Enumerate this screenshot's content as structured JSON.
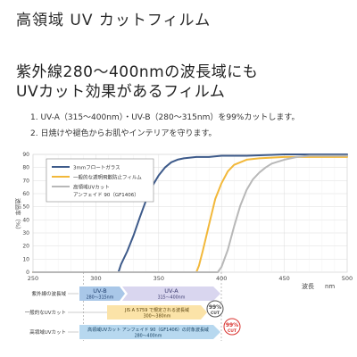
{
  "header": {
    "title": "高領域 UV カットフィルム",
    "subtitle_line1": "紫外線280～400nmの波長域にも",
    "subtitle_line2": "UVカット効果があるフィルム"
  },
  "features": [
    "1.  UV-A（315～400nm）・UV-B（280～315nm）を99%カットします。",
    "2.  日焼けや褪色からお肌やインテリアを守ります。"
  ],
  "chart_data": {
    "type": "line",
    "ylabel": "透過率（%）",
    "xlabel": "波長",
    "xunit": "nm",
    "xlim": [
      250,
      500
    ],
    "ylim": [
      0,
      90
    ],
    "x_ticks": [
      "250",
      "300",
      "350",
      "400",
      "450",
      "500"
    ],
    "y_ticks": [
      "0",
      "10",
      "20",
      "30",
      "40",
      "50",
      "60",
      "70",
      "80",
      "90"
    ],
    "grid": true,
    "legend_position": "top-left",
    "series": [
      {
        "name": "3mmフロートガラス",
        "color": "#3d5a8a",
        "x": [
          250,
          300,
          318,
          320,
          325,
          330,
          335,
          340,
          345,
          350,
          355,
          360,
          365,
          370,
          380,
          390,
          400,
          420,
          450,
          500
        ],
        "y": [
          0,
          0,
          0,
          6,
          16,
          28,
          42,
          55,
          66,
          74,
          80,
          84,
          86,
          87,
          88,
          88,
          89,
          89,
          90,
          90
        ]
      },
      {
        "name": "一般的な透明飛散防止フィルム",
        "color": "#f2b83a",
        "x": [
          250,
          380,
          382,
          385,
          390,
          395,
          400,
          405,
          410,
          420,
          430,
          450,
          500
        ],
        "y": [
          0,
          0,
          5,
          16,
          36,
          56,
          68,
          77,
          82,
          86,
          87,
          88,
          88
        ]
      },
      {
        "name_lines": [
          "高領域UVカット",
          "アンフェイド 90（GF1406）"
        ],
        "color": "#b8b8b8",
        "x": [
          250,
          397,
          400,
          405,
          410,
          415,
          420,
          425,
          430,
          435,
          440,
          450,
          460,
          470,
          500
        ],
        "y": [
          0,
          0,
          4,
          17,
          35,
          51,
          63,
          71,
          76,
          80,
          83,
          86,
          88,
          89,
          89
        ]
      }
    ]
  },
  "bands": {
    "rows": [
      {
        "label": "紫外線の波長域",
        "color": "#6d8ec2"
      },
      {
        "label": "一般的なUVカット",
        "color": "#e7a33a"
      },
      {
        "label": "高領域UVカット",
        "color": "#4b92c7"
      }
    ],
    "uvb": {
      "title": "UV-B",
      "range": "280～315nm"
    },
    "uva": {
      "title": "UV-A",
      "range": "315～400nm"
    },
    "general": {
      "text": "JIS A 5759 で規定される波長域",
      "range": "300～380nm"
    },
    "high": {
      "text": "高領域UVカット アンフェイド 90（GF1406）の対象波長域",
      "range": "280～400nm"
    },
    "badge_main": "99%",
    "badge_sub": "CUT",
    "badge_gray_color": "#555555",
    "badge_red_color": "#d9322e"
  }
}
